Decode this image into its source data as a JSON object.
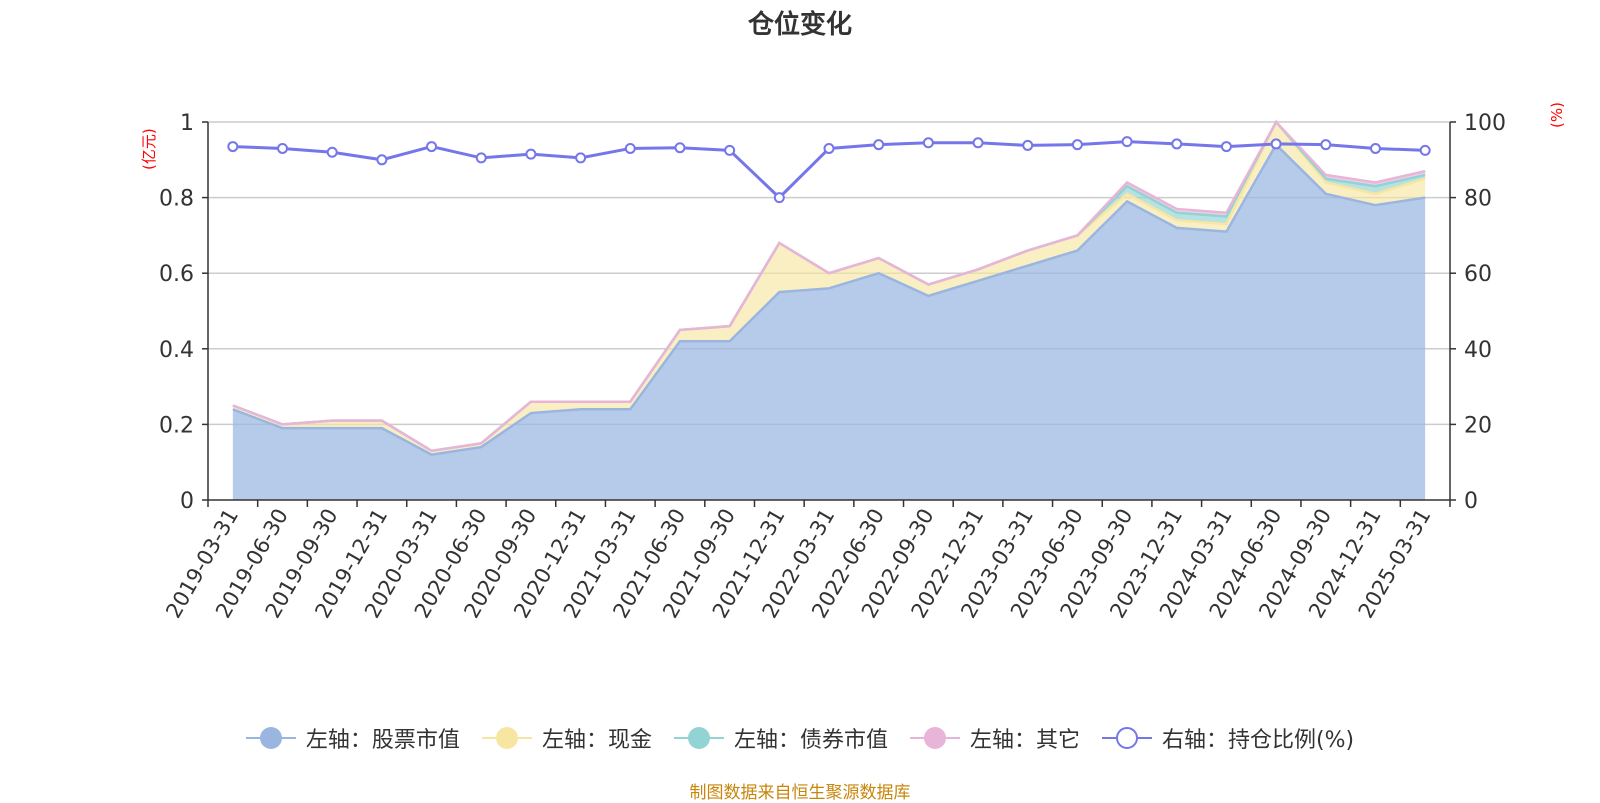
{
  "chart_data": {
    "type": "area",
    "title": "仓位变化",
    "y_unit_left": "(亿元)",
    "y_unit_right": "(%)",
    "x": [
      "2019-03-31",
      "2019-06-30",
      "2019-09-30",
      "2019-12-31",
      "2020-03-31",
      "2020-06-30",
      "2020-09-30",
      "2020-12-31",
      "2021-03-31",
      "2021-06-30",
      "2021-09-30",
      "2021-12-31",
      "2022-03-31",
      "2022-06-30",
      "2022-09-30",
      "2022-12-31",
      "2023-03-31",
      "2023-06-30",
      "2023-09-30",
      "2023-12-31",
      "2024-03-31",
      "2024-06-30",
      "2024-09-30",
      "2024-12-31",
      "2025-03-31"
    ],
    "ylim_left": [
      0,
      1
    ],
    "yticks_left": [
      "0",
      "0.2",
      "0.4",
      "0.6",
      "0.8",
      "1"
    ],
    "ylim_right": [
      0,
      100
    ],
    "yticks_right": [
      "0",
      "20",
      "40",
      "60",
      "80",
      "100"
    ],
    "grid": true,
    "legend_position": "bottom",
    "series": [
      {
        "name": "左轴：股票市值",
        "axis": "left",
        "stack": true,
        "color": "#9ab6e0",
        "values": [
          0.24,
          0.19,
          0.19,
          0.19,
          0.12,
          0.14,
          0.23,
          0.24,
          0.24,
          0.42,
          0.42,
          0.55,
          0.56,
          0.6,
          0.54,
          0.58,
          0.62,
          0.66,
          0.79,
          0.72,
          0.71,
          0.94,
          0.81,
          0.78,
          0.8
        ]
      },
      {
        "name": "左轴：现金",
        "axis": "left",
        "stack": true,
        "color": "#f7e6a2",
        "values": [
          0.01,
          0.01,
          0.02,
          0.02,
          0.01,
          0.01,
          0.03,
          0.02,
          0.02,
          0.03,
          0.04,
          0.13,
          0.04,
          0.04,
          0.03,
          0.03,
          0.04,
          0.04,
          0.02,
          0.02,
          0.02,
          0.06,
          0.03,
          0.03,
          0.05
        ]
      },
      {
        "name": "左轴：债券市值",
        "axis": "left",
        "stack": true,
        "color": "#92d3d3",
        "values": [
          0,
          0,
          0,
          0,
          0,
          0,
          0,
          0,
          0,
          0,
          0,
          0,
          0,
          0,
          0,
          0,
          0,
          0,
          0.02,
          0.02,
          0.02,
          0,
          0.01,
          0.02,
          0.01
        ]
      },
      {
        "name": "左轴：其它",
        "axis": "left",
        "stack": true,
        "color": "#e8b4d8",
        "values": [
          0,
          0,
          0,
          0,
          0,
          0,
          0,
          0,
          0,
          0,
          0,
          0,
          0,
          0,
          0,
          0,
          0,
          0,
          0.01,
          0.01,
          0.01,
          0,
          0.01,
          0.01,
          0.01
        ]
      },
      {
        "name": "右轴：持仓比例(%)",
        "axis": "right",
        "type": "line",
        "color": "#7476ea",
        "values": [
          93.5,
          93,
          92,
          90,
          93.5,
          90.5,
          91.5,
          90.5,
          93,
          93.2,
          92.5,
          80,
          93,
          94,
          94.5,
          94.5,
          93.8,
          94,
          94.8,
          94.2,
          93.5,
          94.2,
          94,
          93,
          92.5
        ]
      }
    ]
  },
  "footer": "制图数据来自恒生聚源数据库"
}
